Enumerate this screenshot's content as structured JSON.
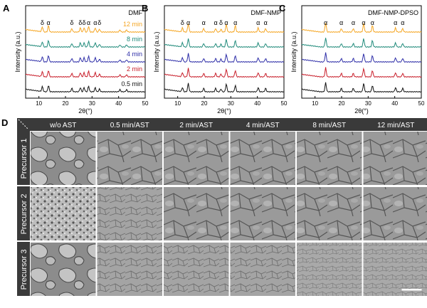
{
  "panels": [
    {
      "letter": "A",
      "title": "DMF",
      "xlabel": "2θ(°)",
      "ylabel": "Intensity (a.u.)",
      "xticks": [
        "10",
        "20",
        "30",
        "40",
        "50"
      ],
      "traces": [
        {
          "label": "12 min",
          "color": "#f5a623"
        },
        {
          "label": "8 min",
          "color": "#1f8a7a"
        },
        {
          "label": "4 min",
          "color": "#2e2ea8"
        },
        {
          "label": "2 min",
          "color": "#c81e2a"
        },
        {
          "label": "0.5 min",
          "color": "#111111"
        }
      ],
      "peak_labels": [
        {
          "text": "δ",
          "x": 11.3
        },
        {
          "text": "α",
          "x": 13.6
        },
        {
          "text": "δ",
          "x": 22.4
        },
        {
          "text": "δ",
          "x": 25.6
        },
        {
          "text": "δ",
          "x": 27.0
        },
        {
          "text": "α",
          "x": 28.7
        },
        {
          "text": "α",
          "x": 31.2
        },
        {
          "text": "δ",
          "x": 32.8
        }
      ]
    },
    {
      "letter": "B",
      "title": "DMF-NMP",
      "xlabel": "2θ(°)",
      "ylabel": "Intensity (a.u.)",
      "xticks": [
        "10",
        "20",
        "30",
        "40",
        "50"
      ],
      "traces": [
        {
          "label": "",
          "color": "#f5a623"
        },
        {
          "label": "",
          "color": "#1f8a7a"
        },
        {
          "label": "",
          "color": "#2e2ea8"
        },
        {
          "label": "",
          "color": "#c81e2a"
        },
        {
          "label": "",
          "color": "#111111"
        }
      ],
      "peak_labels": [
        {
          "text": "δ",
          "x": 11.8
        },
        {
          "text": "α",
          "x": 14.0
        },
        {
          "text": "α",
          "x": 19.8
        },
        {
          "text": "α",
          "x": 24.3
        },
        {
          "text": "δ",
          "x": 26.3
        },
        {
          "text": "α",
          "x": 28.3
        },
        {
          "text": "α",
          "x": 31.7
        },
        {
          "text": "α",
          "x": 40.3
        },
        {
          "text": "α",
          "x": 43.1
        }
      ]
    },
    {
      "letter": "C",
      "title": "DMF-NMP-DPSO",
      "xlabel": "2θ(°)",
      "ylabel": "Intensity (a.u.)",
      "xticks": [
        "10",
        "20",
        "30",
        "40",
        "50"
      ],
      "traces": [
        {
          "label": "",
          "color": "#f5a623"
        },
        {
          "label": "",
          "color": "#1f8a7a"
        },
        {
          "label": "",
          "color": "#2e2ea8"
        },
        {
          "label": "",
          "color": "#c81e2a"
        },
        {
          "label": "",
          "color": "#111111"
        }
      ],
      "peak_labels": [
        {
          "text": "α",
          "x": 14.0
        },
        {
          "text": "α",
          "x": 19.9
        },
        {
          "text": "α",
          "x": 24.4
        },
        {
          "text": "α",
          "x": 28.3
        },
        {
          "text": "α",
          "x": 31.6
        },
        {
          "text": "α",
          "x": 40.3
        },
        {
          "text": "α",
          "x": 43.0
        }
      ]
    }
  ],
  "sem": {
    "letter": "D",
    "columns": [
      "w/o AST",
      "0.5 min/AST",
      "2 min/AST",
      "4 min/AST",
      "8 min/AST",
      "12 min/AST"
    ],
    "rows": [
      "Precursor 1",
      "Precursor 2",
      "Precursor 3"
    ]
  }
}
